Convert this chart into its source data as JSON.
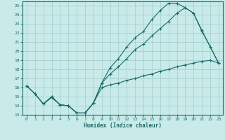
{
  "xlabel": "Humidex (Indice chaleur)",
  "bg_color": "#c8eae8",
  "grid_color": "#a0cccc",
  "line_color": "#1a6b6b",
  "xlim": [
    -0.5,
    23.5
  ],
  "ylim": [
    13,
    25.5
  ],
  "xticks": [
    0,
    1,
    2,
    3,
    4,
    5,
    6,
    7,
    8,
    9,
    10,
    11,
    12,
    13,
    14,
    15,
    16,
    17,
    18,
    19,
    20,
    21,
    22,
    23
  ],
  "yticks": [
    13,
    14,
    15,
    16,
    17,
    18,
    19,
    20,
    21,
    22,
    23,
    24,
    25
  ],
  "line1_x": [
    0,
    1,
    2,
    3,
    4,
    5,
    6,
    7,
    8,
    9,
    10,
    11,
    12,
    13,
    14,
    15,
    16,
    17,
    18,
    19,
    20,
    21,
    22,
    23
  ],
  "line1_y": [
    16.2,
    15.3,
    14.2,
    15.0,
    14.1,
    14.0,
    13.2,
    13.2,
    14.3,
    16.5,
    18.2,
    19.2,
    20.5,
    21.5,
    22.2,
    23.5,
    24.5,
    25.3,
    25.3,
    24.8,
    24.2,
    22.2,
    20.5,
    18.7
  ],
  "line2_x": [
    0,
    1,
    2,
    3,
    4,
    5,
    6,
    7,
    8,
    9,
    10,
    11,
    12,
    13,
    14,
    15,
    16,
    17,
    18,
    19,
    20,
    21,
    22,
    23
  ],
  "line2_y": [
    16.2,
    15.3,
    14.2,
    15.0,
    14.1,
    14.0,
    13.2,
    13.2,
    14.3,
    16.5,
    17.5,
    18.3,
    19.2,
    20.2,
    20.8,
    21.7,
    22.5,
    23.3,
    24.2,
    24.8,
    24.2,
    22.3,
    20.5,
    18.7
  ],
  "line3_x": [
    0,
    1,
    2,
    3,
    4,
    5,
    6,
    7,
    8,
    9,
    10,
    11,
    12,
    13,
    14,
    15,
    16,
    17,
    18,
    19,
    20,
    21,
    22,
    23
  ],
  "line3_y": [
    16.2,
    15.3,
    14.2,
    14.9,
    14.1,
    14.0,
    13.2,
    13.2,
    14.3,
    16.0,
    16.3,
    16.5,
    16.8,
    17.0,
    17.3,
    17.5,
    17.8,
    18.0,
    18.3,
    18.5,
    18.7,
    18.9,
    19.0,
    18.7
  ]
}
